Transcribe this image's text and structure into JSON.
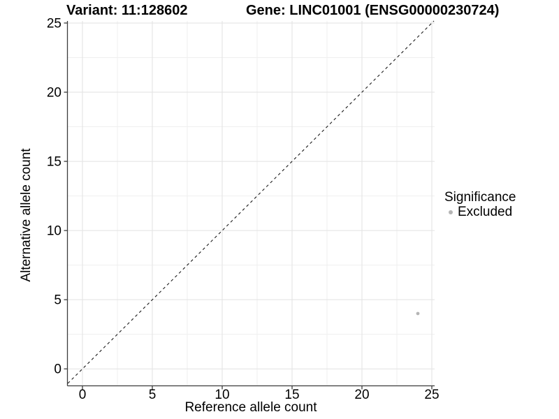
{
  "titles": {
    "variant": "Variant: 11:128602",
    "gene": "Gene: LINC01001 (ENSG00000230724)"
  },
  "chart_data": {
    "type": "scatter",
    "title_left": "Variant: 11:128602",
    "title_right": "Gene: LINC01001 (ENSG00000230724)",
    "xlabel": "Reference allele count",
    "ylabel": "Alternative allele count",
    "x_ticks": [
      0,
      5,
      10,
      15,
      20,
      25
    ],
    "y_ticks": [
      0,
      5,
      10,
      15,
      20,
      25
    ],
    "x_minor_ticks": [
      2.5,
      7.5,
      12.5,
      17.5,
      22.5
    ],
    "y_minor_ticks": [
      2.5,
      7.5,
      12.5,
      17.5,
      22.5
    ],
    "xlim": [
      -1.05,
      25.2
    ],
    "ylim": [
      -1.2,
      25.15
    ],
    "grid": true,
    "reference_line": {
      "type": "abline",
      "slope": 1,
      "intercept": 0,
      "style": "dashed",
      "color": "#1a1a1a"
    },
    "series": [
      {
        "name": "Excluded",
        "color": "#b5b5b5",
        "points": [
          {
            "x": 24,
            "y": 4
          }
        ]
      }
    ],
    "legend": {
      "title": "Significance",
      "position": "right",
      "items": [
        {
          "label": "Excluded",
          "color": "#b5b5b5"
        }
      ]
    }
  },
  "colors": {
    "background": "#ffffff",
    "axis_line": "#3c3c3c",
    "grid_major": "#e2e2e2",
    "grid_minor": "#efefef",
    "tick_text": "#000000",
    "point": "#b5b5b5"
  }
}
